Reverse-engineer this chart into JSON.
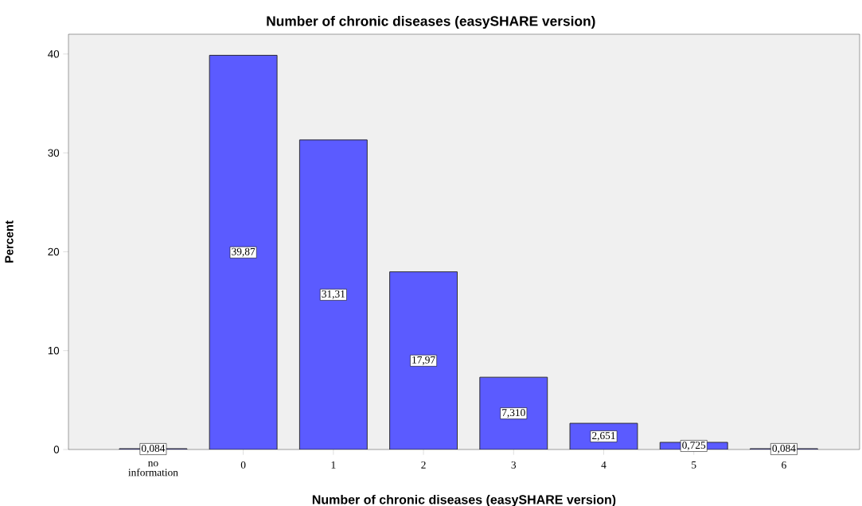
{
  "chart_data": {
    "type": "bar",
    "title": "Number of chronic diseases (easySHARE version)",
    "xlabel": "Number of chronic diseases (easySHARE version)",
    "ylabel": "Percent",
    "categories": [
      "no information",
      "0",
      "1",
      "2",
      "3",
      "4",
      "5",
      "6"
    ],
    "values": [
      0.084,
      39.87,
      31.31,
      17.97,
      7.31,
      2.651,
      0.725,
      0.084
    ],
    "value_labels": [
      "0,084",
      "39,87",
      "31,31",
      "17,97",
      "7,310",
      "2,651",
      "0,725",
      "0,084"
    ],
    "color": "#5b5bff",
    "ylim": [
      0,
      42
    ],
    "yticks": [
      0,
      10,
      20,
      30,
      40
    ],
    "grid": false
  }
}
